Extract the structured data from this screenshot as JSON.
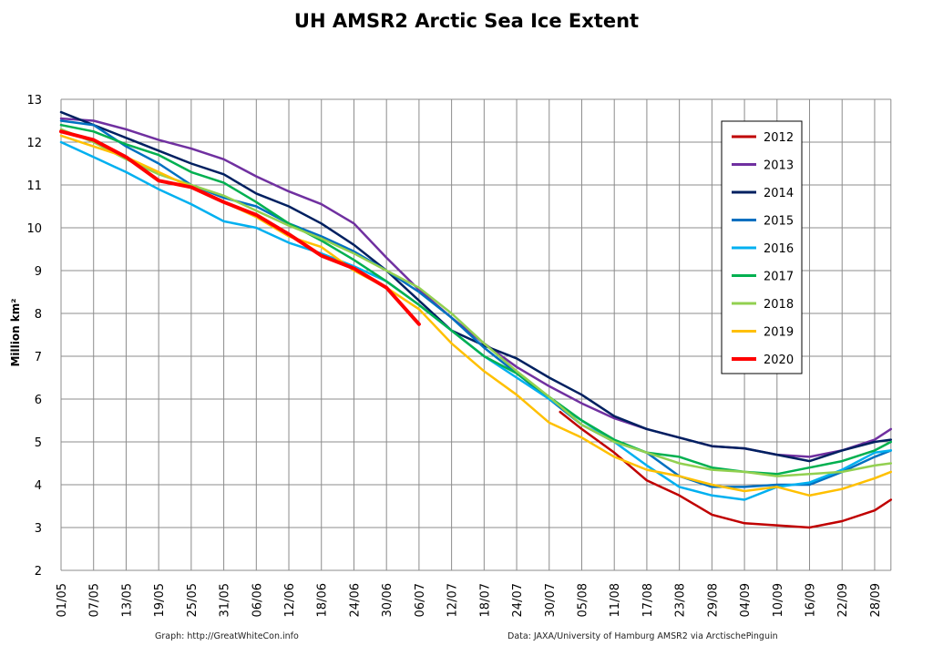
{
  "chart_data": {
    "type": "line",
    "title": "UH AMSR2 Arctic Sea Ice Extent",
    "ylabel": "Million km²",
    "xlabel": "",
    "ylim": [
      2,
      13
    ],
    "yticks": [
      2,
      3,
      4,
      5,
      6,
      7,
      8,
      9,
      10,
      11,
      12,
      13
    ],
    "xlim": [
      "01/05",
      "01/10"
    ],
    "xticks": [
      "01/05",
      "07/05",
      "13/05",
      "19/05",
      "25/05",
      "31/05",
      "06/06",
      "12/06",
      "18/06",
      "24/06",
      "30/06",
      "06/07",
      "12/07",
      "18/07",
      "24/07",
      "30/07",
      "05/08",
      "11/08",
      "17/08",
      "23/08",
      "29/08",
      "04/09",
      "10/09",
      "16/09",
      "22/09",
      "28/09"
    ],
    "grid": true,
    "legend_position": "right",
    "notes": {
      "left": "Graph: http://GreatWhiteCon.info",
      "right": "Data: JAXA/University of Hamburg AMSR2 via  ArctischePinguin"
    },
    "series": [
      {
        "name": "2012",
        "color": "#c00000",
        "points": [
          [
            "01/08",
            5.7
          ],
          [
            "05/08",
            5.3
          ],
          [
            "11/08",
            4.75
          ],
          [
            "17/08",
            4.1
          ],
          [
            "23/08",
            3.75
          ],
          [
            "29/08",
            3.3
          ],
          [
            "04/09",
            3.1
          ],
          [
            "10/09",
            3.05
          ],
          [
            "16/09",
            3.0
          ],
          [
            "22/09",
            3.15
          ],
          [
            "28/09",
            3.4
          ],
          [
            "01/10",
            3.65
          ]
        ]
      },
      {
        "name": "2013",
        "color": "#7030a0",
        "values": [
          12.55,
          12.5,
          12.3,
          12.05,
          11.85,
          11.6,
          11.2,
          10.85,
          10.55,
          10.1,
          9.3,
          8.55,
          7.9,
          7.3,
          6.75,
          6.3,
          5.9,
          5.55,
          5.3,
          5.1,
          4.9,
          4.85,
          4.7,
          4.65,
          4.8,
          5.05,
          5.3
        ]
      },
      {
        "name": "2014",
        "color": "#002060",
        "values": [
          12.7,
          12.4,
          12.1,
          11.8,
          11.5,
          11.25,
          10.8,
          10.5,
          10.1,
          9.6,
          9.0,
          8.3,
          7.6,
          7.25,
          6.95,
          6.5,
          6.1,
          5.6,
          5.3,
          5.1,
          4.9,
          4.85,
          4.7,
          4.55,
          4.8,
          5.0,
          5.05
        ]
      },
      {
        "name": "2015",
        "color": "#0070c0",
        "values": [
          12.5,
          12.4,
          11.9,
          11.5,
          11.0,
          10.7,
          10.5,
          10.1,
          9.8,
          9.45,
          9.0,
          8.5,
          7.9,
          7.2,
          6.6,
          6.0,
          5.4,
          5.0,
          4.75,
          4.2,
          3.95,
          3.95,
          4.0,
          4.0,
          4.3,
          4.65,
          4.8
        ]
      },
      {
        "name": "2016",
        "color": "#00b0f0",
        "values": [
          12.0,
          11.65,
          11.3,
          10.9,
          10.55,
          10.15,
          10.0,
          9.65,
          9.4,
          9.1,
          8.75,
          8.2,
          7.6,
          7.0,
          6.5,
          6.0,
          5.5,
          5.0,
          4.45,
          3.95,
          3.75,
          3.65,
          3.95,
          4.05,
          4.35,
          4.75,
          4.8
        ]
      },
      {
        "name": "2017",
        "color": "#00b050",
        "values": [
          12.4,
          12.25,
          11.95,
          11.7,
          11.3,
          11.05,
          10.6,
          10.1,
          9.7,
          9.25,
          8.75,
          8.2,
          7.6,
          7.0,
          6.6,
          6.05,
          5.5,
          5.05,
          4.75,
          4.65,
          4.4,
          4.3,
          4.25,
          4.4,
          4.55,
          4.8,
          5.0
        ]
      },
      {
        "name": "2018",
        "color": "#92d050",
        "values": [
          12.3,
          12.0,
          11.6,
          11.25,
          11.0,
          10.75,
          10.4,
          10.05,
          9.75,
          9.4,
          9.0,
          8.6,
          8.0,
          7.3,
          6.65,
          6.05,
          5.4,
          5.0,
          4.75,
          4.5,
          4.35,
          4.3,
          4.2,
          4.25,
          4.3,
          4.45,
          4.5
        ]
      },
      {
        "name": "2019",
        "color": "#ffc000",
        "values": [
          12.15,
          11.9,
          11.65,
          11.3,
          10.95,
          10.6,
          10.25,
          9.8,
          9.55,
          9.0,
          8.6,
          8.1,
          7.3,
          6.65,
          6.1,
          5.45,
          5.1,
          4.65,
          4.35,
          4.2,
          4.0,
          3.85,
          3.95,
          3.75,
          3.9,
          4.15,
          4.3
        ]
      },
      {
        "name": "2020",
        "color": "#ff0000",
        "values": [
          12.25,
          12.05,
          11.65,
          11.1,
          10.95,
          10.6,
          10.3,
          9.85,
          9.35,
          9.05,
          8.6,
          7.75
        ],
        "thick": true
      }
    ],
    "series_x": [
      "01/05",
      "07/05",
      "13/05",
      "19/05",
      "25/05",
      "31/05",
      "06/06",
      "12/06",
      "18/06",
      "24/06",
      "30/06",
      "06/07",
      "12/07",
      "18/07",
      "24/07",
      "30/07",
      "05/08",
      "11/08",
      "17/08",
      "23/08",
      "29/08",
      "04/09",
      "10/09",
      "16/09",
      "22/09",
      "28/09",
      "01/10"
    ]
  }
}
